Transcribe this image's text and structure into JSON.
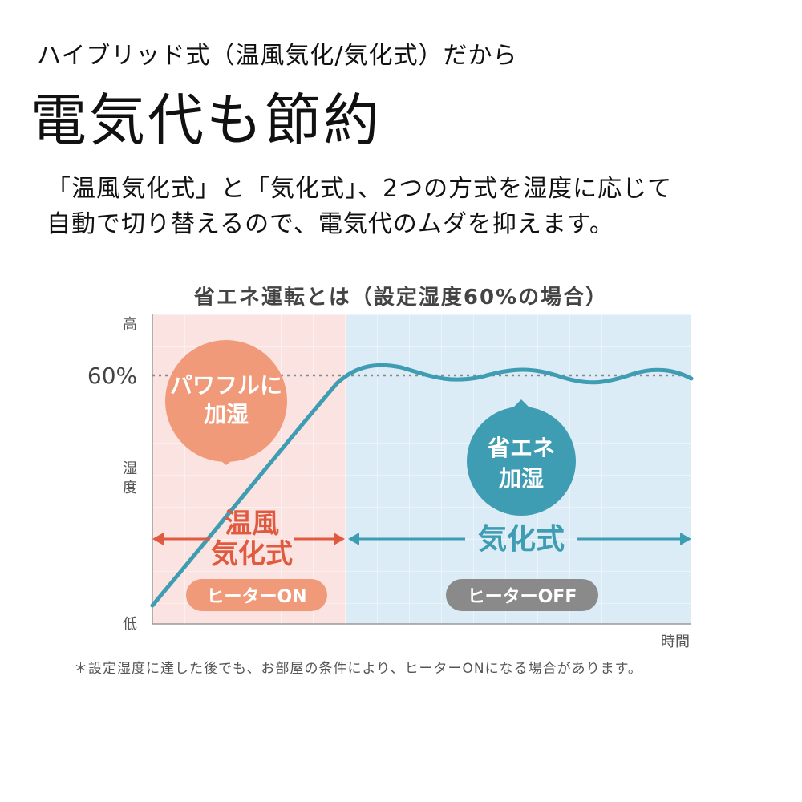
{
  "header": {
    "subtitle": "ハイブリッド式（温風気化/気化式）だから",
    "headline": "電気代も節約",
    "description_lines": [
      "「温風気化式」と「気化式」、2つの方式を湿度に応じて",
      "自動で切り替えるので、電気代のムダを抑えます。"
    ]
  },
  "diagram": {
    "title": "省エネ運転とは（設定湿度60%の場合）",
    "axis": {
      "y_high": "高",
      "y_low": "低",
      "y_label": "湿度",
      "x_label": "時間",
      "setpoint_label": "60%"
    },
    "left_zone": {
      "bubble_lines": [
        "パワフルに",
        "加湿"
      ],
      "mode_lines": [
        "温風",
        "気化式"
      ],
      "pill": "ヒーターON"
    },
    "right_zone": {
      "bubble_lines": [
        "省エネ",
        "加湿"
      ],
      "mode": "気化式",
      "pill": "ヒーターOFF"
    },
    "colors": {
      "left_bg": "#fbe3e1",
      "right_bg": "#dcecf7",
      "left_accent": "#f09a7a",
      "left_text": "#e05a3f",
      "right_accent": "#3e9db3",
      "curve": "#3e9db3",
      "pill_on": "#f09a7a",
      "pill_off": "#8a8a8a"
    },
    "footnote": "＊設定湿度に達した後でも、お部屋の条件により、ヒーターONになる場合があります。"
  }
}
